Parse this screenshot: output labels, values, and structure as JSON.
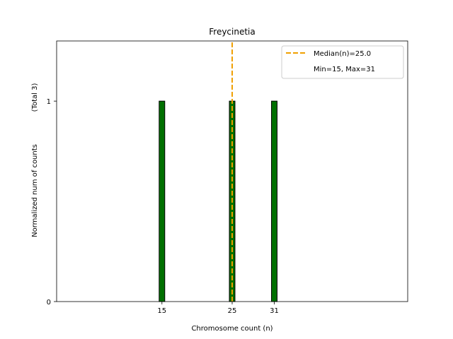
{
  "chart_data": {
    "type": "bar",
    "title": "Freycinetia",
    "xlabel": "Chromosome count (n)",
    "ylabel": "Normalized num of counts",
    "ylabel_note": "(Total 3)",
    "xlim": [
      0,
      50
    ],
    "ylim": [
      0,
      1.3
    ],
    "xticks": [
      15,
      25,
      31
    ],
    "yticks": [
      0,
      1
    ],
    "bar_width": 0.8,
    "bar_color": "#007000",
    "bar_edge_color": "#000000",
    "x": [
      15,
      25,
      31
    ],
    "values": [
      1,
      1,
      1
    ],
    "median": 25.0,
    "median_color": "#f0a000",
    "min": 15,
    "max": 31,
    "legend": {
      "position": "top-right",
      "entries": [
        "Median(n)=25.0",
        "Min=15, Max=31"
      ]
    }
  }
}
